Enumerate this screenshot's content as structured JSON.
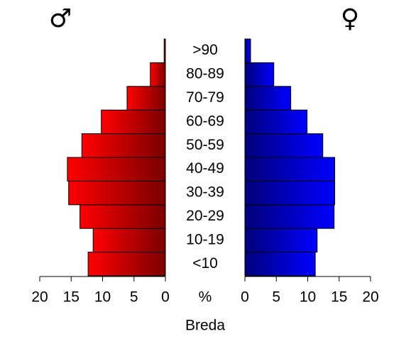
{
  "chart_data": {
    "type": "pyramid",
    "title": "Breda",
    "x_label": "%",
    "categories": [
      "<10",
      "10-19",
      "20-29",
      "30-39",
      "40-49",
      "50-59",
      "60-69",
      "70-79",
      "80-89",
      ">90"
    ],
    "series": [
      {
        "name": "♂",
        "color": [
          "#ff0000",
          "#7a0000"
        ],
        "values": [
          12.3,
          11.5,
          13.6,
          15.4,
          15.6,
          13.3,
          10.2,
          6.1,
          2.4,
          0.2
        ]
      },
      {
        "name": "♀",
        "color": [
          "#00007a",
          "#0000ff"
        ],
        "values": [
          11.2,
          11.5,
          14.2,
          14.3,
          14.3,
          12.4,
          9.9,
          7.3,
          4.6,
          0.9
        ]
      }
    ],
    "xlim": [
      0,
      20
    ],
    "xticks": [
      0,
      5,
      10,
      15,
      20
    ]
  }
}
